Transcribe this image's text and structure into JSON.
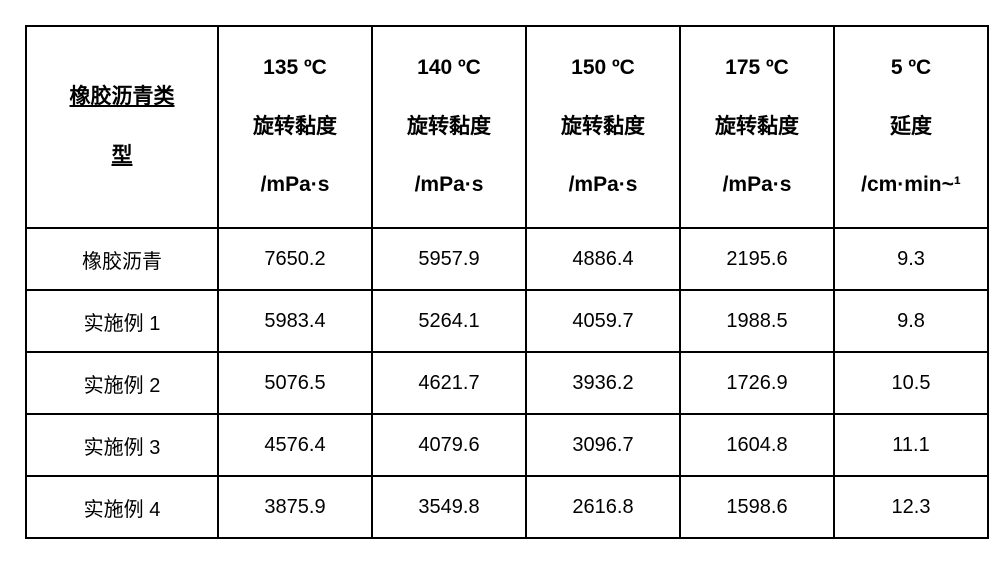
{
  "table": {
    "columns": [
      {
        "lines": [
          "橡胶沥青类",
          "型"
        ],
        "underline": true
      },
      {
        "lines": [
          "135 ºC",
          "旋转黏度",
          "/mPa·s"
        ],
        "underline": false
      },
      {
        "lines": [
          "140 ºC",
          "旋转黏度",
          "/mPa·s"
        ],
        "underline": false
      },
      {
        "lines": [
          "150 ºC",
          "旋转黏度",
          "/mPa·s"
        ],
        "underline": false
      },
      {
        "lines": [
          "175 ºC",
          "旋转黏度",
          "/mPa·s"
        ],
        "underline": false
      },
      {
        "lines": [
          "5 ºC",
          "延度",
          "/cm·min~¹"
        ],
        "underline": false
      }
    ],
    "rows": [
      {
        "label": "橡胶沥青",
        "v135": "7650.2",
        "v140": "5957.9",
        "v150": "4886.4",
        "v175": "2195.6",
        "d5": "9.3"
      },
      {
        "label": "实施例 1",
        "v135": "5983.4",
        "v140": "5264.1",
        "v150": "4059.7",
        "v175": "1988.5",
        "d5": "9.8"
      },
      {
        "label": "实施例 2",
        "v135": "5076.5",
        "v140": "4621.7",
        "v150": "3936.2",
        "v175": "1726.9",
        "d5": "10.5"
      },
      {
        "label": "实施例 3",
        "v135": "4576.4",
        "v140": "4079.6",
        "v150": "3096.7",
        "v175": "1604.8",
        "d5": "11.1"
      },
      {
        "label": "实施例 4",
        "v135": "3875.9",
        "v140": "3549.8",
        "v150": "2616.8",
        "v175": "1598.6",
        "d5": "12.3"
      }
    ],
    "border_color": "#000000",
    "background_color": "#ffffff",
    "header_fontsize": 21,
    "cell_fontsize": 20
  }
}
